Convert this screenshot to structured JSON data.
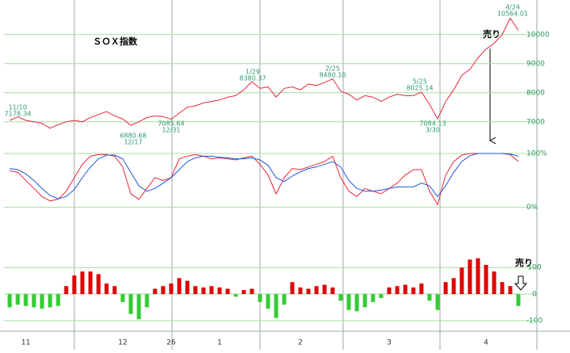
{
  "chart_data": [
    {
      "type": "line",
      "title": "ＳＯＸ指数",
      "series": [
        {
          "color": "#e8283a",
          "values": [
            7050,
            7170,
            7050,
            7000,
            6950,
            6780,
            6900,
            7000,
            7050,
            7000,
            7150,
            7250,
            7350,
            7200,
            7100,
            6880,
            7000,
            7150,
            7200,
            7180,
            7085,
            7300,
            7500,
            7550,
            7650,
            7700,
            7750,
            7850,
            7900,
            8100,
            8380,
            8150,
            8200,
            7850,
            8150,
            8200,
            8100,
            8300,
            8250,
            8350,
            8480,
            8050,
            7950,
            7750,
            7900,
            7850,
            7700,
            7850,
            7950,
            7900,
            7900,
            8025,
            7600,
            7100,
            7700,
            8100,
            8600,
            8800,
            9200,
            9500,
            9700,
            10000,
            10564,
            10150
          ]
        }
      ],
      "ylim": [
        6050,
        11050
      ],
      "yticks": [
        7000,
        8000,
        9000,
        10000
      ],
      "grid": true,
      "annotations": [
        {
          "lines": [
            "11/10",
            "7178.34"
          ]
        },
        {
          "lines": [
            "6880.68",
            "12/17"
          ]
        },
        {
          "lines": [
            "7085.64",
            "12/31"
          ]
        },
        {
          "lines": [
            "1/29",
            "8380.37"
          ]
        },
        {
          "lines": [
            "2/25",
            "8480.10"
          ]
        },
        {
          "lines": [
            "5/25",
            "8025.14"
          ]
        },
        {
          "lines": [
            "7084.13",
            "3/30"
          ]
        },
        {
          "lines": [
            "4/24",
            "10564.01"
          ]
        }
      ],
      "signal": "売り"
    },
    {
      "type": "line",
      "series": [
        {
          "color": "#e8283a",
          "values": [
            68,
            65,
            50,
            35,
            20,
            12,
            15,
            30,
            55,
            80,
            95,
            98,
            98,
            95,
            75,
            25,
            15,
            35,
            55,
            50,
            55,
            90,
            95,
            98,
            95,
            90,
            92,
            90,
            88,
            92,
            95,
            80,
            60,
            25,
            55,
            72,
            70,
            75,
            80,
            85,
            95,
            55,
            30,
            20,
            35,
            30,
            25,
            35,
            45,
            60,
            70,
            70,
            30,
            5,
            60,
            85,
            97,
            100,
            100,
            100,
            100,
            100,
            98,
            85
          ]
        },
        {
          "color": "#2255dd",
          "values": [
            72,
            70,
            62,
            50,
            35,
            22,
            16,
            20,
            33,
            55,
            75,
            90,
            97,
            97,
            90,
            65,
            40,
            30,
            35,
            45,
            55,
            70,
            85,
            92,
            95,
            95,
            93,
            92,
            90,
            90,
            92,
            88,
            78,
            55,
            48,
            58,
            66,
            72,
            75,
            80,
            85,
            75,
            50,
            35,
            30,
            30,
            32,
            35,
            38,
            38,
            38,
            45,
            40,
            20,
            40,
            65,
            85,
            96,
            100,
            100,
            100,
            100,
            99,
            95
          ]
        }
      ],
      "ylim": [
        -50,
        106
      ],
      "yticks": [
        {
          "value": 0,
          "label": "0%"
        },
        {
          "value": 100,
          "label": "100%"
        }
      ],
      "grid": true
    },
    {
      "type": "bar",
      "categories": [
        null,
        null,
        "11",
        null,
        null,
        null,
        null,
        null,
        null,
        null,
        null,
        null,
        null,
        null,
        "12",
        null,
        null,
        null,
        null,
        null,
        "26",
        null,
        null,
        null,
        null,
        null,
        "1",
        null,
        null,
        null,
        null,
        null,
        null,
        null,
        null,
        null,
        "2",
        null,
        null,
        null,
        null,
        null,
        null,
        null,
        null,
        null,
        null,
        "3",
        null,
        null,
        null,
        null,
        null,
        null,
        null,
        null,
        null,
        null,
        null,
        "4",
        null,
        null,
        null,
        null
      ],
      "values": [
        -50,
        -40,
        -45,
        -50,
        -55,
        -50,
        -45,
        30,
        70,
        85,
        85,
        75,
        40,
        30,
        -30,
        -75,
        -95,
        -50,
        20,
        30,
        40,
        60,
        50,
        30,
        25,
        30,
        25,
        20,
        -10,
        15,
        20,
        -30,
        -55,
        -90,
        -40,
        45,
        25,
        20,
        30,
        35,
        25,
        -25,
        -60,
        -65,
        -50,
        -30,
        -15,
        25,
        30,
        35,
        25,
        40,
        -25,
        -60,
        45,
        60,
        100,
        130,
        135,
        110,
        85,
        45,
        30,
        -45
      ],
      "colors": {
        "positive": "#e00000",
        "negative": "#33cc33"
      },
      "ylim": [
        -140,
        195
      ],
      "yticks": [
        -100,
        0,
        100
      ],
      "grid": true,
      "signal": "売り"
    }
  ]
}
